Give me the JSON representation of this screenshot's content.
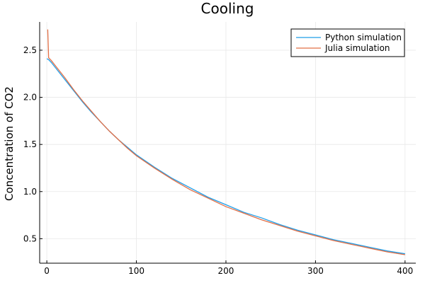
{
  "chart_data": {
    "type": "line",
    "title": "Cooling",
    "xlabel": "",
    "ylabel": "Concentration of CO2",
    "xlim": [
      -8,
      412
    ],
    "ylim": [
      0.24,
      2.8
    ],
    "xticks": [
      0,
      100,
      200,
      300,
      400
    ],
    "yticks": [
      0.5,
      1.0,
      1.5,
      2.0,
      2.5
    ],
    "xtick_labels": [
      "0",
      "100",
      "200",
      "300",
      "400"
    ],
    "ytick_labels": [
      "0.5",
      "1.0",
      "1.5",
      "2.0",
      "2.5"
    ],
    "grid": true,
    "legend_position": "top-right",
    "series": [
      {
        "name": "Python simulation",
        "color": "#1f9ee8",
        "x": [
          0,
          2,
          5,
          10,
          20,
          30,
          40,
          50,
          60,
          70,
          80,
          90,
          100,
          120,
          140,
          160,
          180,
          200,
          220,
          240,
          260,
          280,
          300,
          320,
          340,
          360,
          380,
          400
        ],
        "y": [
          2.41,
          2.4,
          2.37,
          2.31,
          2.19,
          2.07,
          1.95,
          1.84,
          1.74,
          1.64,
          1.55,
          1.47,
          1.39,
          1.26,
          1.14,
          1.04,
          0.94,
          0.86,
          0.78,
          0.72,
          0.65,
          0.59,
          0.54,
          0.49,
          0.45,
          0.41,
          0.37,
          0.34
        ]
      },
      {
        "name": "Julia simulation",
        "color": "#e26f46",
        "x": [
          1,
          2,
          3,
          5,
          10,
          20,
          30,
          40,
          50,
          60,
          70,
          80,
          90,
          100,
          120,
          140,
          160,
          180,
          200,
          220,
          240,
          260,
          280,
          300,
          320,
          340,
          360,
          380,
          400
        ],
        "y": [
          2.72,
          2.42,
          2.41,
          2.39,
          2.33,
          2.21,
          2.08,
          1.96,
          1.85,
          1.74,
          1.64,
          1.55,
          1.46,
          1.38,
          1.25,
          1.13,
          1.02,
          0.93,
          0.84,
          0.77,
          0.7,
          0.64,
          0.58,
          0.53,
          0.48,
          0.44,
          0.4,
          0.36,
          0.33
        ]
      }
    ]
  }
}
